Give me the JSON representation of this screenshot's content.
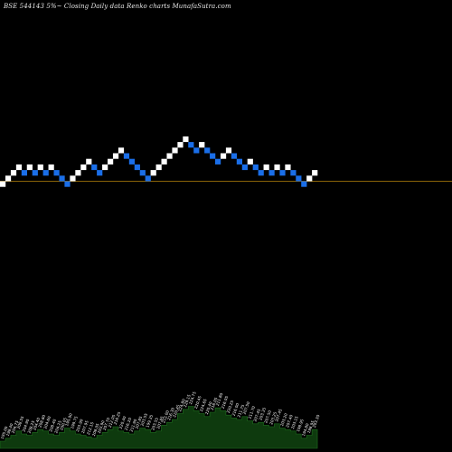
{
  "header": {
    "title": "BSE 544143 5%~  Closing Daily data  Renko  charts MunafaSutra.com"
  },
  "colors": {
    "background": "#000000",
    "up_brick": "#ffffff",
    "down_brick": "#1a6ee8",
    "baseline": "#b8860b",
    "volume_fill": "#0e3a0e",
    "volume_stroke": "#1e6e1e"
  },
  "chart_data": {
    "type": "renko",
    "title": "BSE 544143 5%~ Closing Daily data Renko charts MunafaSutra.com",
    "brick_size_percent": 5,
    "baseline_level": 0,
    "bricks": [
      {
        "dir": "up",
        "level": -1
      },
      {
        "dir": "up",
        "level": 0
      },
      {
        "dir": "up",
        "level": 1
      },
      {
        "dir": "up",
        "level": 2
      },
      {
        "dir": "down",
        "level": 1
      },
      {
        "dir": "up",
        "level": 2
      },
      {
        "dir": "down",
        "level": 1
      },
      {
        "dir": "up",
        "level": 2
      },
      {
        "dir": "down",
        "level": 1
      },
      {
        "dir": "up",
        "level": 2
      },
      {
        "dir": "down",
        "level": 1
      },
      {
        "dir": "down",
        "level": 0
      },
      {
        "dir": "down",
        "level": -1
      },
      {
        "dir": "up",
        "level": 0
      },
      {
        "dir": "up",
        "level": 1
      },
      {
        "dir": "up",
        "level": 2
      },
      {
        "dir": "up",
        "level": 3
      },
      {
        "dir": "down",
        "level": 2
      },
      {
        "dir": "down",
        "level": 1
      },
      {
        "dir": "up",
        "level": 2
      },
      {
        "dir": "up",
        "level": 3
      },
      {
        "dir": "up",
        "level": 4
      },
      {
        "dir": "up",
        "level": 5
      },
      {
        "dir": "down",
        "level": 4
      },
      {
        "dir": "down",
        "level": 3
      },
      {
        "dir": "down",
        "level": 2
      },
      {
        "dir": "down",
        "level": 1
      },
      {
        "dir": "down",
        "level": 0
      },
      {
        "dir": "up",
        "level": 1
      },
      {
        "dir": "up",
        "level": 2
      },
      {
        "dir": "up",
        "level": 3
      },
      {
        "dir": "up",
        "level": 4
      },
      {
        "dir": "up",
        "level": 5
      },
      {
        "dir": "up",
        "level": 6
      },
      {
        "dir": "up",
        "level": 7
      },
      {
        "dir": "down",
        "level": 6
      },
      {
        "dir": "down",
        "level": 5
      },
      {
        "dir": "up",
        "level": 6
      },
      {
        "dir": "down",
        "level": 5
      },
      {
        "dir": "down",
        "level": 4
      },
      {
        "dir": "down",
        "level": 3
      },
      {
        "dir": "up",
        "level": 4
      },
      {
        "dir": "up",
        "level": 5
      },
      {
        "dir": "down",
        "level": 4
      },
      {
        "dir": "down",
        "level": 3
      },
      {
        "dir": "down",
        "level": 2
      },
      {
        "dir": "up",
        "level": 3
      },
      {
        "dir": "down",
        "level": 2
      },
      {
        "dir": "down",
        "level": 1
      },
      {
        "dir": "up",
        "level": 2
      },
      {
        "dir": "down",
        "level": 1
      },
      {
        "dir": "up",
        "level": 2
      },
      {
        "dir": "down",
        "level": 1
      },
      {
        "dir": "up",
        "level": 2
      },
      {
        "dir": "down",
        "level": 1
      },
      {
        "dir": "down",
        "level": 0
      },
      {
        "dir": "down",
        "level": -1
      },
      {
        "dir": "up",
        "level": 0
      },
      {
        "dir": "up",
        "level": 1
      }
    ],
    "price_labels": [
      "195.00",
      "198.40",
      "204.75",
      "208.55",
      "204.90",
      "208.25",
      "204.40",
      "208.80",
      "204.60",
      "208.40",
      "204.25",
      "200.05",
      "195.90",
      "199.75",
      "203.90",
      "207.95",
      "212.15",
      "208.05",
      "203.90",
      "207.70",
      "212.05",
      "216.25",
      "220.40",
      "216.20",
      "211.90",
      "207.85",
      "203.55",
      "199.35",
      "203.55",
      "207.85",
      "212.00",
      "216.30",
      "220.45",
      "224.80",
      "229.15",
      "224.75",
      "220.45",
      "224.65",
      "220.40",
      "216.05",
      "211.80",
      "216.05",
      "220.25",
      "216.00",
      "211.75",
      "207.50",
      "211.70",
      "207.45",
      "203.35",
      "207.50",
      "203.25",
      "207.45",
      "203.20",
      "207.40",
      "203.15",
      "198.95",
      "194.80",
      "198.95",
      "203.30"
    ],
    "volume": [
      5,
      7,
      9,
      12,
      10,
      9,
      11,
      13,
      12,
      10,
      9,
      11,
      14,
      12,
      10,
      9,
      8,
      7,
      9,
      11,
      13,
      15,
      12,
      11,
      10,
      12,
      14,
      13,
      11,
      12,
      16,
      18,
      20,
      24,
      27,
      29,
      26,
      24,
      22,
      25,
      28,
      26,
      23,
      21,
      20,
      22,
      19,
      17,
      18,
      16,
      15,
      17,
      14,
      13,
      12,
      10,
      7,
      9,
      13
    ]
  }
}
